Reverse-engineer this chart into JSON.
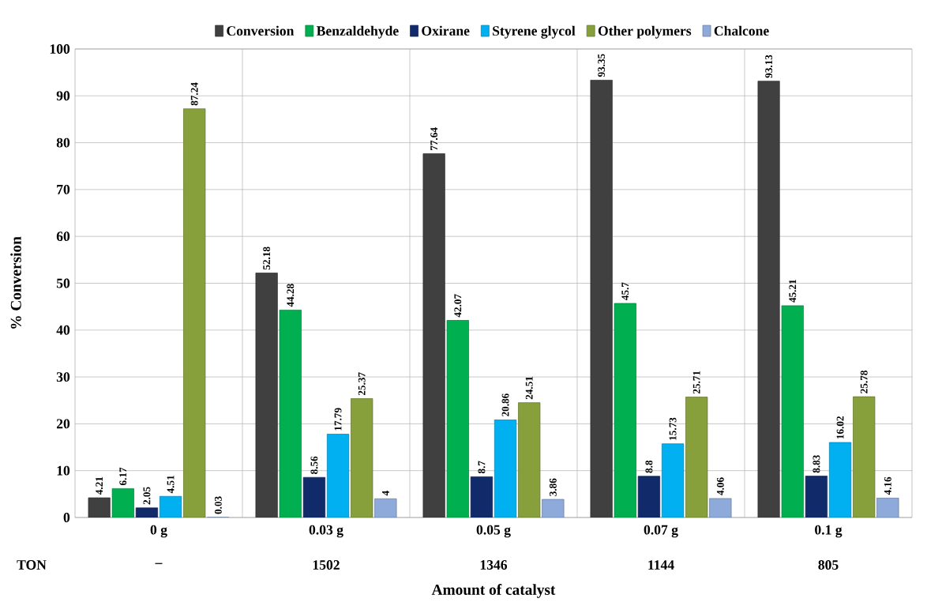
{
  "chart_data": {
    "type": "bar",
    "xlabel": "Amount of catalyst",
    "ylabel": "% Conversion",
    "categories": [
      "0 g",
      "0.03 g",
      "0.05 g",
      "0.07 g",
      "0.1 g"
    ],
    "series": [
      {
        "name": "Conversion",
        "color": "#404040",
        "values": [
          4.21,
          52.18,
          77.64,
          93.35,
          93.13
        ]
      },
      {
        "name": "Benzaldehyde",
        "color": "#00b050",
        "values": [
          6.17,
          44.28,
          42.07,
          45.7,
          45.21
        ]
      },
      {
        "name": "Oxirane",
        "color": "#112a6a",
        "values": [
          2.05,
          8.56,
          8.7,
          8.8,
          8.83
        ]
      },
      {
        "name": "Styrene glycol",
        "color": "#00b0f0",
        "values": [
          4.51,
          17.79,
          20.86,
          15.73,
          16.02
        ]
      },
      {
        "name": "Other polymers",
        "color": "#87a03c",
        "values": [
          87.24,
          25.37,
          24.51,
          25.71,
          25.78
        ]
      },
      {
        "name": "Chalcone",
        "color": "#8eaadb",
        "values": [
          0.03,
          4,
          3.86,
          4.06,
          4.16
        ]
      }
    ],
    "ylim": [
      0,
      100
    ],
    "yticks": [
      0,
      10,
      20,
      30,
      40,
      50,
      60,
      70,
      80,
      90,
      100
    ],
    "grid": true,
    "legend": "top",
    "data_labels": true,
    "annotations": [
      "TON",
      "–",
      "1502",
      "1346",
      "1144",
      "805"
    ]
  }
}
